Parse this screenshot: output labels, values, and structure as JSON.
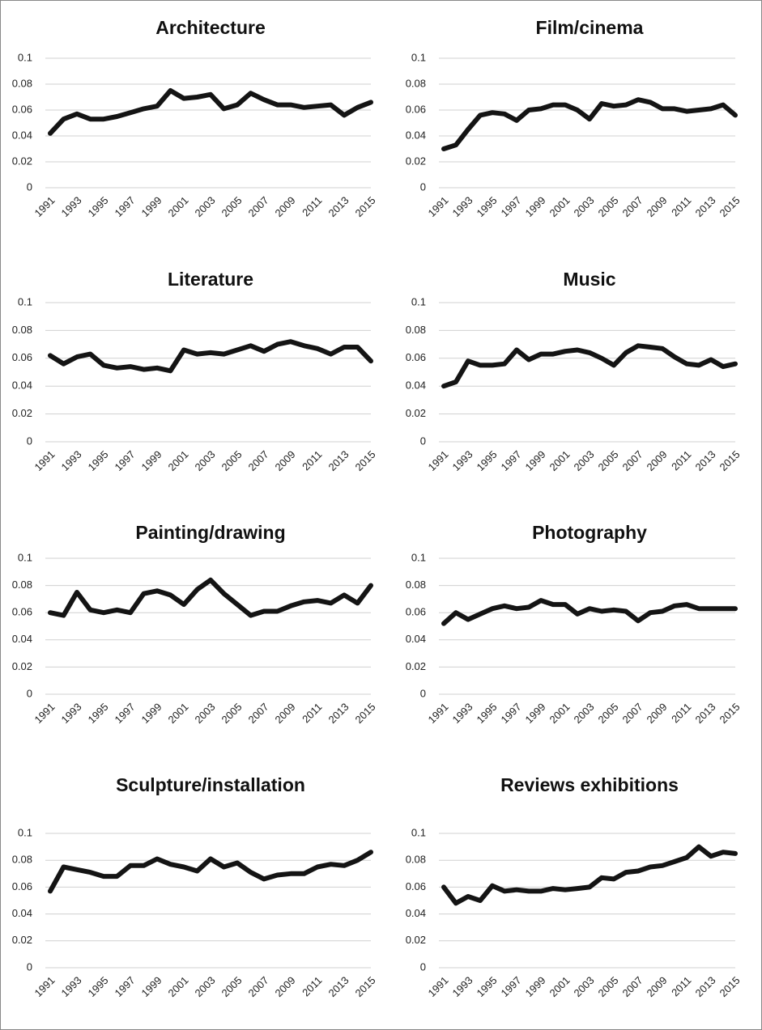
{
  "chart_data": [
    {
      "type": "line",
      "title": "Architecture",
      "categories": [
        "1991",
        null,
        "1993",
        null,
        "1995",
        null,
        "1997",
        null,
        "1999",
        null,
        "2001",
        null,
        "2003",
        null,
        "2005",
        null,
        "2007",
        null,
        "2009",
        null,
        "2011",
        null,
        "2013",
        null,
        "2015"
      ],
      "values": [
        0.042,
        0.053,
        0.057,
        0.053,
        0.053,
        0.055,
        0.058,
        0.061,
        0.063,
        0.075,
        0.069,
        0.07,
        0.072,
        0.061,
        0.064,
        0.073,
        0.068,
        0.064,
        0.064,
        0.062,
        0.063,
        0.064,
        0.056,
        0.062,
        0.066
      ],
      "color": "#141414",
      "ylim": [
        0,
        0.1
      ],
      "yticks": [
        0,
        0.02,
        0.04,
        0.06,
        0.08,
        0.1
      ],
      "grid": true
    },
    {
      "type": "line",
      "title": "Film/cinema",
      "categories": [
        "1991",
        null,
        "1993",
        null,
        "1995",
        null,
        "1997",
        null,
        "1999",
        null,
        "2001",
        null,
        "2003",
        null,
        "2005",
        null,
        "2007",
        null,
        "2009",
        null,
        "2011",
        null,
        "2013",
        null,
        "2015"
      ],
      "values": [
        0.03,
        0.033,
        0.045,
        0.056,
        0.058,
        0.057,
        0.052,
        0.06,
        0.061,
        0.064,
        0.064,
        0.06,
        0.053,
        0.065,
        0.063,
        0.064,
        0.068,
        0.066,
        0.061,
        0.061,
        0.059,
        0.06,
        0.061,
        0.064,
        0.056
      ],
      "color": "#141414",
      "ylim": [
        0,
        0.1
      ],
      "yticks": [
        0,
        0.02,
        0.04,
        0.06,
        0.08,
        0.1
      ],
      "grid": true
    },
    {
      "type": "line",
      "title": "Literature",
      "categories": [
        "1991",
        null,
        "1993",
        null,
        "1995",
        null,
        "1997",
        null,
        "1999",
        null,
        "2001",
        null,
        "2003",
        null,
        "2005",
        null,
        "2007",
        null,
        "2009",
        null,
        "2011",
        null,
        "2013",
        null,
        "2015"
      ],
      "values": [
        0.062,
        0.056,
        0.061,
        0.063,
        0.055,
        0.053,
        0.054,
        0.052,
        0.053,
        0.051,
        0.066,
        0.063,
        0.064,
        0.063,
        0.066,
        0.069,
        0.065,
        0.07,
        0.072,
        0.069,
        0.067,
        0.063,
        0.068,
        0.068,
        0.058
      ],
      "color": "#141414",
      "ylim": [
        0,
        0.1
      ],
      "yticks": [
        0,
        0.02,
        0.04,
        0.06,
        0.08,
        0.1
      ],
      "grid": true
    },
    {
      "type": "line",
      "title": "Music",
      "categories": [
        "1991",
        null,
        "1993",
        null,
        "1995",
        null,
        "1997",
        null,
        "1999",
        null,
        "2001",
        null,
        "2003",
        null,
        "2005",
        null,
        "2007",
        null,
        "2009",
        null,
        "2011",
        null,
        "2013",
        null,
        "2015"
      ],
      "values": [
        0.04,
        0.043,
        0.058,
        0.055,
        0.055,
        0.056,
        0.066,
        0.059,
        0.063,
        0.063,
        0.065,
        0.066,
        0.064,
        0.06,
        0.055,
        0.064,
        0.069,
        0.068,
        0.067,
        0.061,
        0.056,
        0.055,
        0.059,
        0.054,
        0.056
      ],
      "color": "#141414",
      "ylim": [
        0,
        0.1
      ],
      "yticks": [
        0,
        0.02,
        0.04,
        0.06,
        0.08,
        0.1
      ],
      "grid": true
    },
    {
      "type": "line",
      "title": "Painting/drawing",
      "categories": [
        "1991",
        null,
        "1993",
        null,
        "1995",
        null,
        "1997",
        null,
        "1999",
        null,
        "2001",
        null,
        "2003",
        null,
        "2005",
        null,
        "2007",
        null,
        "2009",
        null,
        "2011",
        null,
        "2013",
        null,
        "2015"
      ],
      "values": [
        0.06,
        0.058,
        0.075,
        0.062,
        0.06,
        0.062,
        0.06,
        0.074,
        0.076,
        0.073,
        0.066,
        0.077,
        0.084,
        0.074,
        0.066,
        0.058,
        0.061,
        0.061,
        0.065,
        0.068,
        0.069,
        0.067,
        0.073,
        0.067,
        0.08
      ],
      "color": "#141414",
      "ylim": [
        0,
        0.1
      ],
      "yticks": [
        0,
        0.02,
        0.04,
        0.06,
        0.08,
        0.1
      ],
      "grid": true
    },
    {
      "type": "line",
      "title": "Photography",
      "categories": [
        "1991",
        null,
        "1993",
        null,
        "1995",
        null,
        "1997",
        null,
        "1999",
        null,
        "2001",
        null,
        "2003",
        null,
        "2005",
        null,
        "2007",
        null,
        "2009",
        null,
        "2011",
        null,
        "2013",
        null,
        "2015"
      ],
      "values": [
        0.052,
        0.06,
        0.055,
        0.059,
        0.063,
        0.065,
        0.063,
        0.064,
        0.069,
        0.066,
        0.066,
        0.059,
        0.063,
        0.061,
        0.062,
        0.061,
        0.054,
        0.06,
        0.061,
        0.065,
        0.066,
        0.063,
        0.063,
        0.063,
        0.063
      ],
      "color": "#141414",
      "ylim": [
        0,
        0.1
      ],
      "yticks": [
        0,
        0.02,
        0.04,
        0.06,
        0.08,
        0.1
      ],
      "grid": true
    },
    {
      "type": "line",
      "title": "Sculpture/installation",
      "categories": [
        "1991",
        null,
        "1993",
        null,
        "1995",
        null,
        "1997",
        null,
        "1999",
        null,
        "2001",
        null,
        "2003",
        null,
        "2005",
        null,
        "2007",
        null,
        "2009",
        null,
        "2011",
        null,
        "2013",
        null,
        "2015"
      ],
      "values": [
        0.057,
        0.075,
        0.073,
        0.071,
        0.068,
        0.068,
        0.076,
        0.076,
        0.081,
        0.077,
        0.075,
        0.072,
        0.081,
        0.075,
        0.078,
        0.071,
        0.066,
        0.069,
        0.07,
        0.07,
        0.075,
        0.077,
        0.076,
        0.08,
        0.086
      ],
      "color": "#141414",
      "ylim": [
        0,
        0.1
      ],
      "yticks": [
        0,
        0.02,
        0.04,
        0.06,
        0.08,
        0.1
      ],
      "grid": true
    },
    {
      "type": "line",
      "title": "Reviews exhibitions",
      "categories": [
        "1991",
        null,
        "1993",
        null,
        "1995",
        null,
        "1997",
        null,
        "1999",
        null,
        "2001",
        null,
        "2003",
        null,
        "2005",
        null,
        "2007",
        null,
        "2009",
        null,
        "2011",
        null,
        "2013",
        null,
        "2015"
      ],
      "values": [
        0.06,
        0.048,
        0.053,
        0.05,
        0.061,
        0.057,
        0.058,
        0.057,
        0.057,
        0.059,
        0.058,
        0.059,
        0.06,
        0.067,
        0.066,
        0.071,
        0.072,
        0.075,
        0.076,
        0.079,
        0.082,
        0.09,
        0.083,
        0.086,
        0.085
      ],
      "color": "#141414",
      "ylim": [
        0,
        0.1
      ],
      "yticks": [
        0,
        0.02,
        0.04,
        0.06,
        0.08,
        0.1
      ],
      "grid": true
    }
  ]
}
